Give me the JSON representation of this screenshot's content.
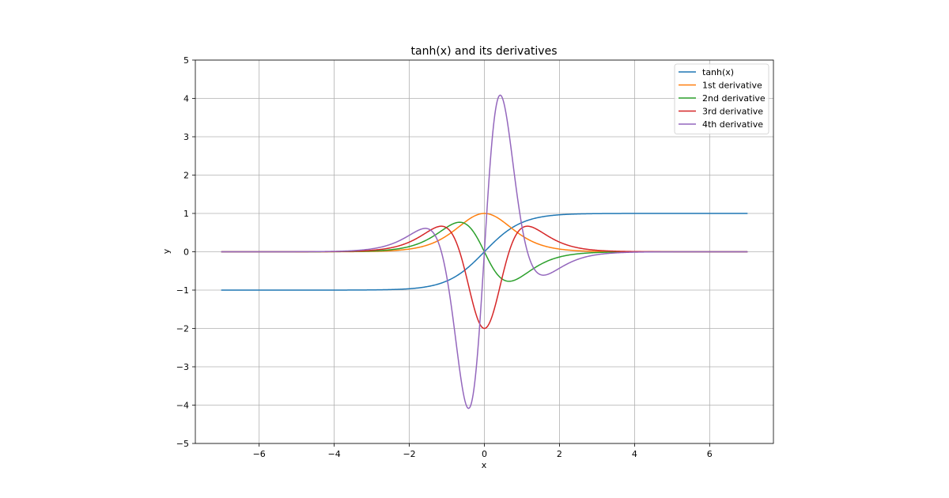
{
  "chart_data": {
    "type": "line",
    "title": "tanh(x) and its derivatives",
    "xlabel": "x",
    "ylabel": "y",
    "xlim": [
      -7.7,
      7.7
    ],
    "ylim": [
      -5,
      5
    ],
    "xrange": [
      -7,
      7
    ],
    "xticks": [
      -6,
      -4,
      -2,
      0,
      2,
      4,
      6
    ],
    "xtick_labels": [
      "−6",
      "−4",
      "−2",
      "0",
      "2",
      "4",
      "6"
    ],
    "yticks": [
      -5,
      -4,
      -3,
      -2,
      -1,
      0,
      1,
      2,
      3,
      4,
      5
    ],
    "ytick_labels": [
      "−5",
      "−4",
      "−3",
      "−2",
      "−1",
      "0",
      "1",
      "2",
      "3",
      "4",
      "5"
    ],
    "grid": true,
    "legend_position": "top-right",
    "series": [
      {
        "name": "tanh(x)",
        "function": "tanh(x)",
        "color": "#1f77b4"
      },
      {
        "name": "1st derivative",
        "function": "sech^2(x)",
        "color": "#ff7f0e"
      },
      {
        "name": "2nd derivative",
        "function": "-2 sech^2(x) tanh(x)",
        "color": "#2ca02c"
      },
      {
        "name": "3rd derivative",
        "function": "sech^2(x)(4 tanh^2(x) - 2 sech^2(x))",
        "color": "#d62728"
      },
      {
        "name": "4th derivative",
        "function": "8 sech^2(x) tanh(x)(2 sech^2(x) - tanh^2(x))",
        "color": "#9467bd"
      }
    ]
  }
}
